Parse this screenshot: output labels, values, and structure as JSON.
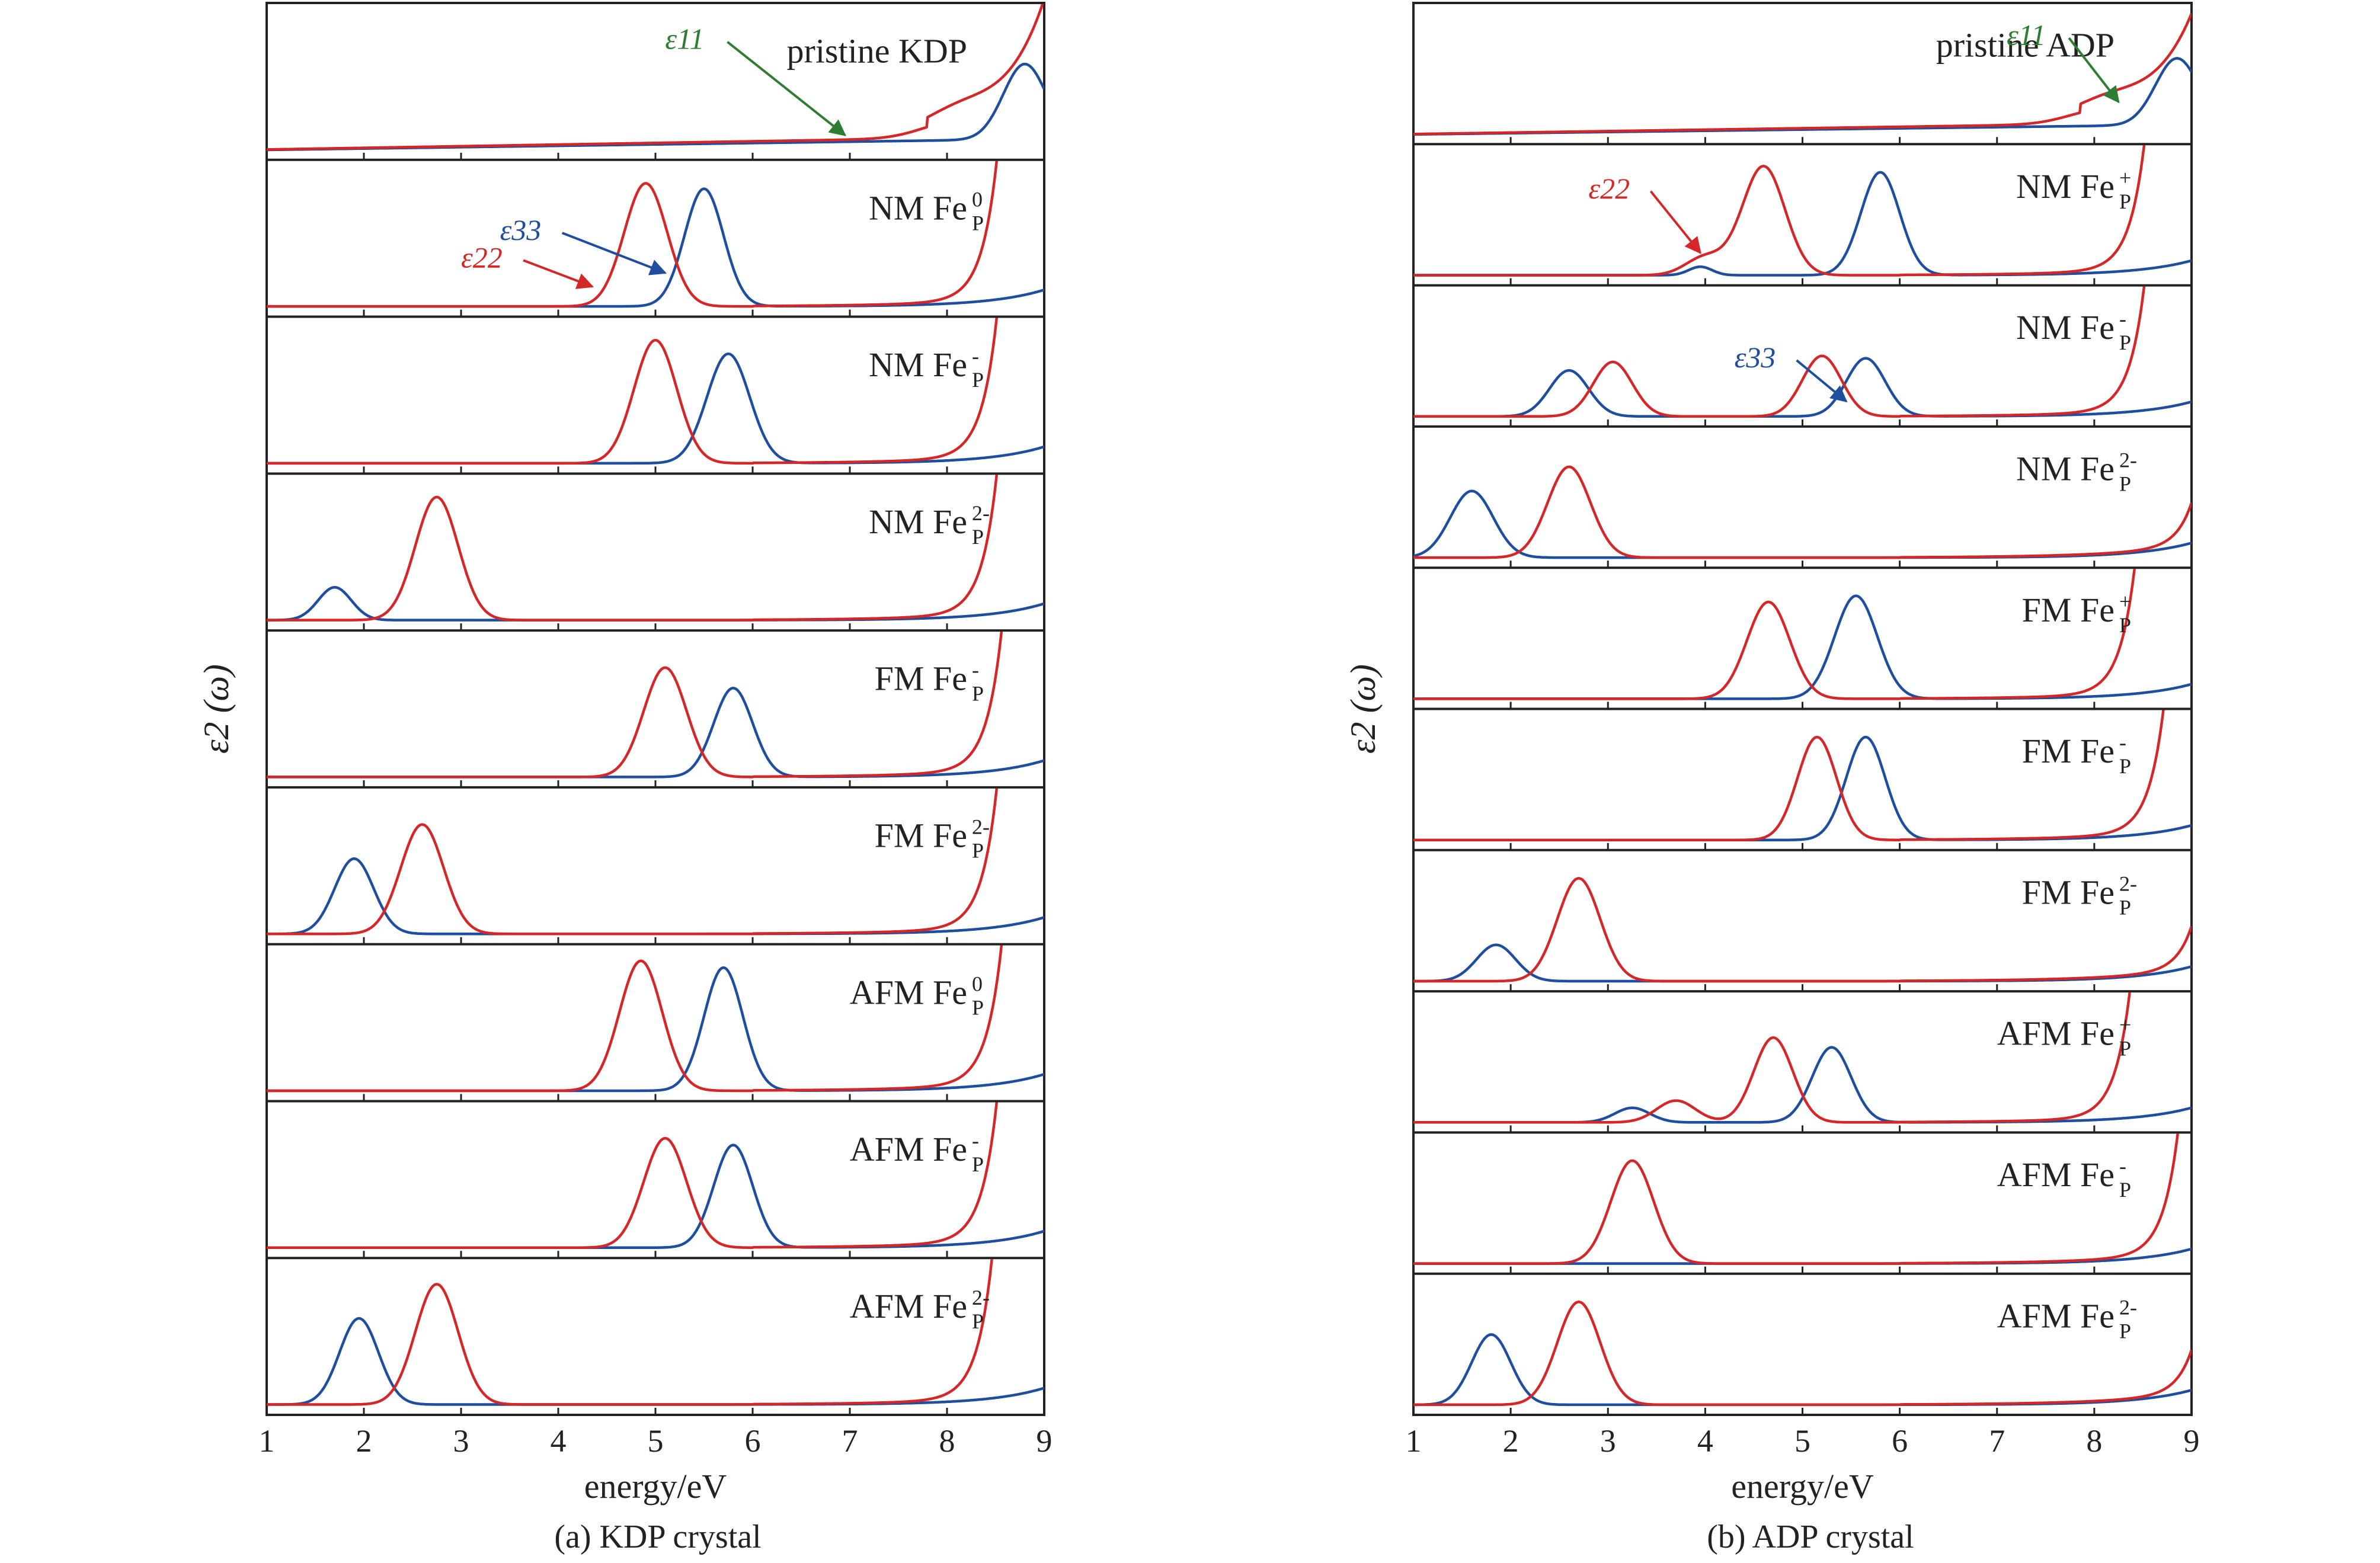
{
  "figure": {
    "panel_a_caption": "(a) KDP crystal",
    "panel_b_caption": "(b) ADP crystal"
  },
  "chart_data": [
    {
      "type": "line",
      "panel": "a",
      "xlabel": "energy/eV",
      "ylabel": "ε2 (ω)",
      "xlim": [
        1,
        9
      ],
      "xticks": [
        1,
        2,
        3,
        4,
        5,
        6,
        7,
        8,
        9
      ],
      "colors": {
        "eps11": "#2e7d32",
        "eps22": "#d62728",
        "eps33": "#1f4e9e"
      },
      "subplots": [
        {
          "label": "pristine KDP",
          "base": "pristine",
          "red_edge": 8.7,
          "red_shoulder": 8.1,
          "blue_edge": 8.8,
          "annotations": [
            {
              "text": "ε11",
              "color": "green",
              "tx": 5.1,
              "ty": 0.75,
              "hx": 6.95,
              "hy": 0.12
            }
          ]
        },
        {
          "label": "NM Fe",
          "sup": "0",
          "red_peaks": [
            [
              4.9,
              0.9,
              0.22
            ]
          ],
          "blue_peaks": [
            [
              5.5,
              0.86,
              0.2
            ]
          ],
          "red_edge": 8.55,
          "annotations": [
            {
              "text": "ε22",
              "color": "red",
              "tx": 3.0,
              "ty": 0.3,
              "hx": 4.35,
              "hy": 0.16
            },
            {
              "text": "ε33",
              "color": "blue",
              "tx": 3.4,
              "ty": 0.5,
              "hx": 5.1,
              "hy": 0.26
            }
          ]
        },
        {
          "label": "NM Fe",
          "sup": "-",
          "red_peaks": [
            [
              5.0,
              0.9,
              0.22
            ]
          ],
          "blue_peaks": [
            [
              5.75,
              0.8,
              0.22
            ]
          ],
          "red_edge": 8.55
        },
        {
          "label": "NM Fe",
          "sup": "2-",
          "red_peaks": [
            [
              2.75,
              0.9,
              0.22
            ]
          ],
          "blue_peaks": [
            [
              1.7,
              0.24,
              0.17
            ]
          ],
          "red_edge": 8.55
        },
        {
          "label": "FM Fe",
          "sup": "-",
          "red_peaks": [
            [
              5.1,
              0.8,
              0.22
            ]
          ],
          "blue_peaks": [
            [
              5.8,
              0.65,
              0.2
            ]
          ],
          "red_edge": 8.6
        },
        {
          "label": "FM Fe",
          "sup": "2-",
          "red_peaks": [
            [
              2.6,
              0.8,
              0.22
            ]
          ],
          "blue_peaks": [
            [
              1.9,
              0.55,
              0.2
            ]
          ],
          "red_edge": 8.55
        },
        {
          "label": "AFM Fe",
          "sup": "0",
          "red_peaks": [
            [
              4.85,
              0.95,
              0.22
            ]
          ],
          "blue_peaks": [
            [
              5.7,
              0.9,
              0.2
            ]
          ],
          "red_edge": 8.6
        },
        {
          "label": "AFM Fe",
          "sup": "-",
          "red_peaks": [
            [
              5.1,
              0.8,
              0.22
            ]
          ],
          "blue_peaks": [
            [
              5.8,
              0.75,
              0.2
            ]
          ],
          "red_edge": 8.55
        },
        {
          "label": "AFM Fe",
          "sup": "2-",
          "red_peaks": [
            [
              2.75,
              0.88,
              0.22
            ]
          ],
          "blue_peaks": [
            [
              1.95,
              0.63,
              0.2
            ]
          ],
          "red_edge": 8.5
        }
      ]
    },
    {
      "type": "line",
      "panel": "b",
      "xlabel": "energy/eV",
      "ylabel": "ε2 (ω)",
      "xlim": [
        1,
        9
      ],
      "xticks": [
        1,
        2,
        3,
        4,
        5,
        6,
        7,
        8,
        9
      ],
      "colors": {
        "eps11": "#2e7d32",
        "eps22": "#d62728",
        "eps33": "#1f4e9e"
      },
      "subplots": [
        {
          "label": "pristine ADP",
          "base": "pristine",
          "red_edge": 8.75,
          "red_shoulder": 8.1,
          "blue_edge": 8.85,
          "annotations": [
            {
              "text": "ε11",
              "color": "green",
              "tx": 7.1,
              "ty": 0.75,
              "hx": 8.25,
              "hy": 0.28
            }
          ]
        },
        {
          "label": "NM Fe",
          "sup": "+",
          "red_peaks": [
            [
              4.6,
              0.9,
              0.22
            ],
            [
              4.0,
              0.15,
              0.2
            ]
          ],
          "blue_peaks": [
            [
              5.8,
              0.85,
              0.2
            ],
            [
              3.95,
              0.07,
              0.12
            ]
          ],
          "red_edge": 8.55,
          "annotations": [
            {
              "text": "ε22",
              "color": "red",
              "tx": 2.8,
              "ty": 0.65,
              "hx": 3.95,
              "hy": 0.2
            }
          ]
        },
        {
          "label": "NM Fe",
          "sup": "-",
          "red_peaks": [
            [
              3.05,
              0.45,
              0.2
            ],
            [
              5.2,
              0.5,
              0.2
            ]
          ],
          "blue_peaks": [
            [
              2.6,
              0.38,
              0.2
            ],
            [
              5.65,
              0.48,
              0.2
            ]
          ],
          "red_edge": 8.55,
          "annotations": [
            {
              "text": "ε33",
              "color": "blue",
              "tx": 4.3,
              "ty": 0.42,
              "hx": 5.45,
              "hy": 0.14
            }
          ]
        },
        {
          "label": "NM Fe",
          "sup": "2-",
          "red_peaks": [
            [
              2.6,
              0.75,
              0.22
            ]
          ],
          "blue_peaks": [
            [
              1.6,
              0.55,
              0.22
            ]
          ],
          "red_edge": 9.2
        },
        {
          "label": "FM Fe",
          "sup": "+",
          "red_peaks": [
            [
              4.65,
              0.8,
              0.22
            ]
          ],
          "blue_peaks": [
            [
              5.55,
              0.85,
              0.22
            ]
          ],
          "red_edge": 8.45
        },
        {
          "label": "FM Fe",
          "sup": "-",
          "red_peaks": [
            [
              5.15,
              0.85,
              0.2
            ]
          ],
          "blue_peaks": [
            [
              5.65,
              0.85,
              0.2
            ]
          ],
          "red_edge": 8.75
        },
        {
          "label": "FM Fe",
          "sup": "2-",
          "red_peaks": [
            [
              2.7,
              0.85,
              0.22
            ]
          ],
          "blue_peaks": [
            [
              1.85,
              0.3,
              0.2
            ]
          ],
          "red_edge": 9.2
        },
        {
          "label": "AFM Fe",
          "sup": "+",
          "red_peaks": [
            [
              4.7,
              0.7,
              0.2
            ],
            [
              3.7,
              0.18,
              0.2
            ]
          ],
          "blue_peaks": [
            [
              5.3,
              0.62,
              0.2
            ],
            [
              3.25,
              0.12,
              0.18
            ]
          ],
          "red_edge": 8.4
        },
        {
          "label": "AFM Fe",
          "sup": "-",
          "red_peaks": [
            [
              3.25,
              0.85,
              0.22
            ]
          ],
          "blue_peaks": [],
          "red_edge": 8.9
        },
        {
          "label": "AFM Fe",
          "sup": "2-",
          "red_peaks": [
            [
              2.7,
              0.85,
              0.22
            ]
          ],
          "blue_peaks": [
            [
              1.8,
              0.58,
              0.2
            ]
          ],
          "red_edge": 9.2
        }
      ]
    }
  ]
}
